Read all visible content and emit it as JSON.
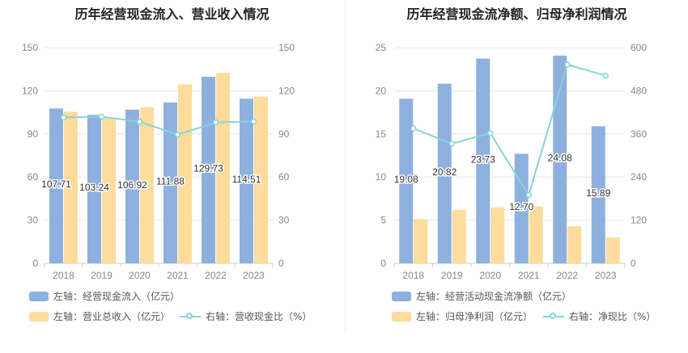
{
  "colors": {
    "bar_primary": "#8eb0de",
    "bar_secondary": "#ffdc9b",
    "line": "#85d4d9",
    "axis_text": "#888888",
    "grid": "#e6e6e6"
  },
  "chart_data": [
    {
      "type": "bar",
      "title": "历年经营现金流入、营业收入情况",
      "categories": [
        "2018",
        "2019",
        "2020",
        "2021",
        "2022",
        "2023"
      ],
      "y_left": {
        "min": 0,
        "max": 150,
        "ticks": [
          "0",
          "30",
          "60",
          "90",
          "120",
          "150"
        ]
      },
      "y_right": {
        "min": 0,
        "max": 150,
        "ticks": [
          "0",
          "30",
          "60",
          "90",
          "120",
          "150"
        ]
      },
      "grid": true,
      "legend_position": "bottom-left",
      "series": [
        {
          "name": "左轴：经营现金流入（亿元）",
          "kind": "bar",
          "axis": "left",
          "color": "#8eb0de",
          "values": [
            107.71,
            103.24,
            106.92,
            111.88,
            129.73,
            114.51
          ],
          "labels": [
            "107.71",
            "103.24",
            "106.92",
            "111.88",
            "129.73",
            "114.51"
          ]
        },
        {
          "name": "左轴：营业总收入（亿元）",
          "kind": "bar",
          "axis": "left",
          "color": "#ffdc9b",
          "values": [
            105.5,
            101,
            108.5,
            124.5,
            132.5,
            116
          ]
        },
        {
          "name": "右轴：营收现金比（%）",
          "kind": "line",
          "axis": "right",
          "color": "#85d4d9",
          "values": [
            101.5,
            102,
            98.5,
            89.5,
            98,
            98.7
          ]
        }
      ]
    },
    {
      "type": "bar",
      "title": "历年经营现金流净额、归母净利润情况",
      "categories": [
        "2018",
        "2019",
        "2020",
        "2021",
        "2022",
        "2023"
      ],
      "y_left": {
        "min": 0,
        "max": 25,
        "ticks": [
          "0",
          "5",
          "10",
          "15",
          "20",
          "25"
        ]
      },
      "y_right": {
        "min": 0,
        "max": 600,
        "ticks": [
          "0",
          "120",
          "240",
          "360",
          "480",
          "600"
        ]
      },
      "grid": true,
      "legend_position": "bottom-left",
      "series": [
        {
          "name": "左轴：经营活动现金流净额（亿元）",
          "kind": "bar",
          "axis": "left",
          "color": "#8eb0de",
          "values": [
            19.08,
            20.82,
            23.73,
            12.7,
            24.08,
            15.89
          ],
          "labels": [
            "19.08",
            "20.82",
            "23.73",
            "12.70",
            "24.08",
            "15.89"
          ]
        },
        {
          "name": "左轴：归母净利润（亿元）",
          "kind": "bar",
          "axis": "left",
          "color": "#ffdc9b",
          "values": [
            5.1,
            6.2,
            6.5,
            6.6,
            4.3,
            3.0
          ]
        },
        {
          "name": "右轴：净现比（%）",
          "kind": "line",
          "axis": "right",
          "color": "#85d4d9",
          "values": [
            375,
            333,
            362,
            190,
            553,
            522
          ]
        }
      ]
    }
  ]
}
